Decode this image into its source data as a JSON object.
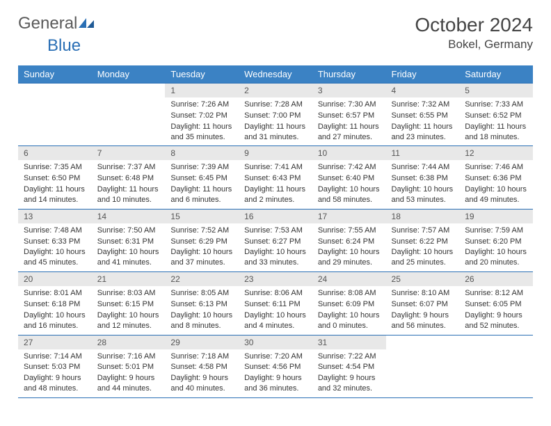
{
  "logo": {
    "text1": "General",
    "text2": "Blue"
  },
  "title": "October 2024",
  "location": "Bokel, Germany",
  "colors": {
    "header_bg": "#3b82c4",
    "header_text": "#ffffff",
    "daynum_bg": "#e8e8e8",
    "border": "#2a6fb5",
    "text": "#333333",
    "logo_gray": "#5a5a5a",
    "logo_blue": "#2a6fb5"
  },
  "day_names": [
    "Sunday",
    "Monday",
    "Tuesday",
    "Wednesday",
    "Thursday",
    "Friday",
    "Saturday"
  ],
  "weeks": [
    [
      {
        "n": "",
        "empty": true
      },
      {
        "n": "",
        "empty": true
      },
      {
        "n": "1",
        "sunrise": "7:26 AM",
        "sunset": "7:02 PM",
        "daylight": "11 hours and 35 minutes."
      },
      {
        "n": "2",
        "sunrise": "7:28 AM",
        "sunset": "7:00 PM",
        "daylight": "11 hours and 31 minutes."
      },
      {
        "n": "3",
        "sunrise": "7:30 AM",
        "sunset": "6:57 PM",
        "daylight": "11 hours and 27 minutes."
      },
      {
        "n": "4",
        "sunrise": "7:32 AM",
        "sunset": "6:55 PM",
        "daylight": "11 hours and 23 minutes."
      },
      {
        "n": "5",
        "sunrise": "7:33 AM",
        "sunset": "6:52 PM",
        "daylight": "11 hours and 18 minutes."
      }
    ],
    [
      {
        "n": "6",
        "sunrise": "7:35 AM",
        "sunset": "6:50 PM",
        "daylight": "11 hours and 14 minutes."
      },
      {
        "n": "7",
        "sunrise": "7:37 AM",
        "sunset": "6:48 PM",
        "daylight": "11 hours and 10 minutes."
      },
      {
        "n": "8",
        "sunrise": "7:39 AM",
        "sunset": "6:45 PM",
        "daylight": "11 hours and 6 minutes."
      },
      {
        "n": "9",
        "sunrise": "7:41 AM",
        "sunset": "6:43 PM",
        "daylight": "11 hours and 2 minutes."
      },
      {
        "n": "10",
        "sunrise": "7:42 AM",
        "sunset": "6:40 PM",
        "daylight": "10 hours and 58 minutes."
      },
      {
        "n": "11",
        "sunrise": "7:44 AM",
        "sunset": "6:38 PM",
        "daylight": "10 hours and 53 minutes."
      },
      {
        "n": "12",
        "sunrise": "7:46 AM",
        "sunset": "6:36 PM",
        "daylight": "10 hours and 49 minutes."
      }
    ],
    [
      {
        "n": "13",
        "sunrise": "7:48 AM",
        "sunset": "6:33 PM",
        "daylight": "10 hours and 45 minutes."
      },
      {
        "n": "14",
        "sunrise": "7:50 AM",
        "sunset": "6:31 PM",
        "daylight": "10 hours and 41 minutes."
      },
      {
        "n": "15",
        "sunrise": "7:52 AM",
        "sunset": "6:29 PM",
        "daylight": "10 hours and 37 minutes."
      },
      {
        "n": "16",
        "sunrise": "7:53 AM",
        "sunset": "6:27 PM",
        "daylight": "10 hours and 33 minutes."
      },
      {
        "n": "17",
        "sunrise": "7:55 AM",
        "sunset": "6:24 PM",
        "daylight": "10 hours and 29 minutes."
      },
      {
        "n": "18",
        "sunrise": "7:57 AM",
        "sunset": "6:22 PM",
        "daylight": "10 hours and 25 minutes."
      },
      {
        "n": "19",
        "sunrise": "7:59 AM",
        "sunset": "6:20 PM",
        "daylight": "10 hours and 20 minutes."
      }
    ],
    [
      {
        "n": "20",
        "sunrise": "8:01 AM",
        "sunset": "6:18 PM",
        "daylight": "10 hours and 16 minutes."
      },
      {
        "n": "21",
        "sunrise": "8:03 AM",
        "sunset": "6:15 PM",
        "daylight": "10 hours and 12 minutes."
      },
      {
        "n": "22",
        "sunrise": "8:05 AM",
        "sunset": "6:13 PM",
        "daylight": "10 hours and 8 minutes."
      },
      {
        "n": "23",
        "sunrise": "8:06 AM",
        "sunset": "6:11 PM",
        "daylight": "10 hours and 4 minutes."
      },
      {
        "n": "24",
        "sunrise": "8:08 AM",
        "sunset": "6:09 PM",
        "daylight": "10 hours and 0 minutes."
      },
      {
        "n": "25",
        "sunrise": "8:10 AM",
        "sunset": "6:07 PM",
        "daylight": "9 hours and 56 minutes."
      },
      {
        "n": "26",
        "sunrise": "8:12 AM",
        "sunset": "6:05 PM",
        "daylight": "9 hours and 52 minutes."
      }
    ],
    [
      {
        "n": "27",
        "sunrise": "7:14 AM",
        "sunset": "5:03 PM",
        "daylight": "9 hours and 48 minutes."
      },
      {
        "n": "28",
        "sunrise": "7:16 AM",
        "sunset": "5:01 PM",
        "daylight": "9 hours and 44 minutes."
      },
      {
        "n": "29",
        "sunrise": "7:18 AM",
        "sunset": "4:58 PM",
        "daylight": "9 hours and 40 minutes."
      },
      {
        "n": "30",
        "sunrise": "7:20 AM",
        "sunset": "4:56 PM",
        "daylight": "9 hours and 36 minutes."
      },
      {
        "n": "31",
        "sunrise": "7:22 AM",
        "sunset": "4:54 PM",
        "daylight": "9 hours and 32 minutes."
      },
      {
        "n": "",
        "empty": true
      },
      {
        "n": "",
        "empty": true
      }
    ]
  ],
  "labels": {
    "sunrise": "Sunrise: ",
    "sunset": "Sunset: ",
    "daylight": "Daylight: "
  }
}
